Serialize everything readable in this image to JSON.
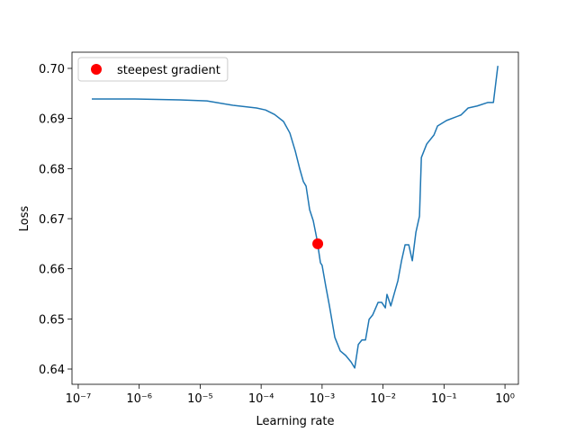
{
  "chart_data": {
    "type": "line",
    "xlabel": "Learning rate",
    "ylabel": "Loss",
    "xscale": "log",
    "xlim": [
      7.9e-08,
      1.66
    ],
    "ylim": [
      0.63695,
      0.70323
    ],
    "xticks": [
      {
        "value": 1e-07,
        "label": "10⁻⁷"
      },
      {
        "value": 1e-06,
        "label": "10⁻⁶"
      },
      {
        "value": 1e-05,
        "label": "10⁻⁵"
      },
      {
        "value": 0.0001,
        "label": "10⁻⁴"
      },
      {
        "value": 0.001,
        "label": "10⁻³"
      },
      {
        "value": 0.01,
        "label": "10⁻²"
      },
      {
        "value": 0.1,
        "label": "10⁻¹"
      },
      {
        "value": 1,
        "label": "10⁰"
      }
    ],
    "yticks": [
      0.64,
      0.65,
      0.66,
      0.67,
      0.68,
      0.69,
      {
        "value": 0.7,
        "label": "0.70"
      }
    ],
    "legend": "upper left",
    "series": [
      {
        "type": "line",
        "color": "#1f77b4",
        "x": [
          1.67e-07,
          8.5e-07,
          4.67e-06,
          1.29e-05,
          3.59e-05,
          8.4e-05,
          0.000118,
          0.000166,
          0.000233,
          0.000296,
          0.000363,
          0.000431,
          0.000493,
          0.000546,
          0.000625,
          0.000716,
          0.00082,
          0.00094,
          0.001,
          0.00115,
          0.00132,
          0.00162,
          0.00199,
          0.00244,
          0.00299,
          0.00343,
          0.00393,
          0.0045,
          0.00515,
          0.0059,
          0.00676,
          0.0083,
          0.0095,
          0.0109,
          0.0116,
          0.0134,
          0.0153,
          0.0175,
          0.0201,
          0.023,
          0.0264,
          0.0302,
          0.0346,
          0.0396,
          0.0425,
          0.052,
          0.0684,
          0.0783,
          0.11,
          0.19,
          0.249,
          0.35,
          0.526,
          0.646,
          0.764
        ],
        "values": [
          0.6939,
          0.6939,
          0.6937,
          0.6935,
          0.6926,
          0.6921,
          0.6917,
          0.6908,
          0.6894,
          0.6871,
          0.6835,
          0.6799,
          0.6774,
          0.6765,
          0.6718,
          0.6696,
          0.666,
          0.6612,
          0.6607,
          0.6565,
          0.6526,
          0.6463,
          0.6436,
          0.6427,
          0.6414,
          0.6402,
          0.6449,
          0.6458,
          0.6458,
          0.6499,
          0.6508,
          0.6533,
          0.6533,
          0.6522,
          0.6549,
          0.6526,
          0.6551,
          0.6576,
          0.6616,
          0.6648,
          0.6648,
          0.6616,
          0.6673,
          0.6705,
          0.6822,
          0.6849,
          0.6867,
          0.6885,
          0.6896,
          0.6907,
          0.6921,
          0.6925,
          0.6932,
          0.6932,
          0.7005
        ]
      },
      {
        "type": "scatter",
        "name": "steepest gradient",
        "color": "red",
        "x": [
          0.000849
        ],
        "values": [
          0.665
        ]
      }
    ]
  }
}
